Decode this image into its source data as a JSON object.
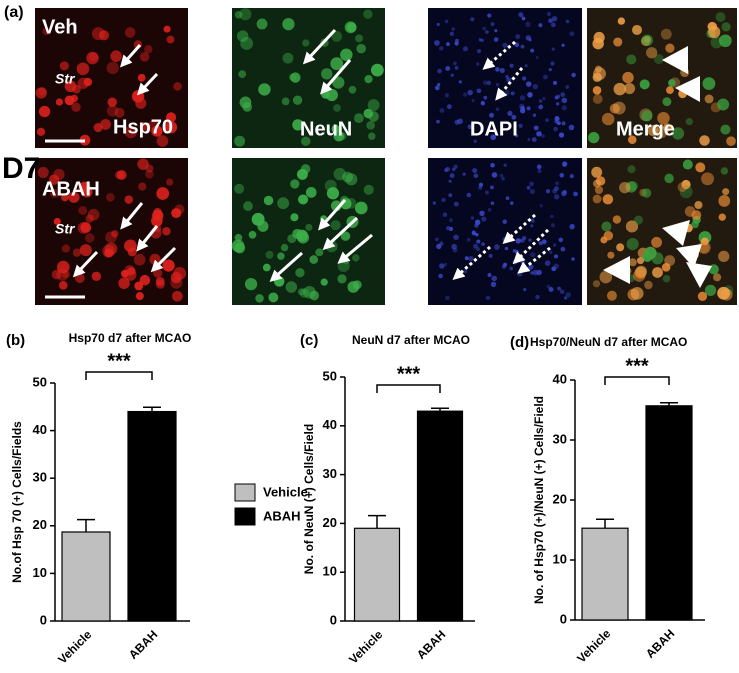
{
  "panel_a": {
    "label": "(a)",
    "day": "D7",
    "rows": [
      {
        "group": "Veh",
        "region": "Str"
      },
      {
        "group": "ABAH",
        "region": "Str"
      }
    ],
    "channels": [
      "Hsp70",
      "NeuN",
      "DAPI",
      "Merge"
    ]
  },
  "chart_data": [
    {
      "panel": "(b)",
      "type": "bar",
      "title": "Hsp70 d7 after MCAO",
      "y_label": "No.of Hsp 70 (+) Cells/Fields",
      "categories": [
        "Vehicle",
        "ABAH"
      ],
      "values": [
        18.7,
        44
      ],
      "errors": [
        2.6,
        0.9
      ],
      "colors": [
        "#bfbfbf",
        "#000000"
      ],
      "ylim": [
        0,
        50
      ],
      "yticks": [
        0,
        10,
        20,
        30,
        40,
        50
      ],
      "annotation": "***",
      "legend": true
    },
    {
      "panel": "(c)",
      "type": "bar",
      "title": "NeuN d7 after MCAO",
      "y_label": "No. of NeuN (+) Cells/Field",
      "categories": [
        "Vehicle",
        "ABAH"
      ],
      "values": [
        19,
        43
      ],
      "errors": [
        2.6,
        0.6
      ],
      "colors": [
        "#bfbfbf",
        "#000000"
      ],
      "ylim": [
        0,
        50
      ],
      "yticks": [
        0,
        10,
        20,
        30,
        40,
        50
      ],
      "annotation": "***",
      "legend": false
    },
    {
      "panel": "(d)",
      "type": "bar",
      "title": "Hsp70/NeuN d7 after MCAO",
      "y_label": "No. of Hsp70 (+)/NeuN (+) Cells/Field",
      "categories": [
        "Vehicle",
        "ABAH"
      ],
      "values": [
        15.3,
        35.7
      ],
      "errors": [
        1.5,
        0.5
      ],
      "colors": [
        "#bfbfbf",
        "#000000"
      ],
      "ylim": [
        0,
        40
      ],
      "yticks": [
        0,
        10,
        20,
        30,
        40
      ],
      "annotation": "***",
      "legend": false
    }
  ]
}
